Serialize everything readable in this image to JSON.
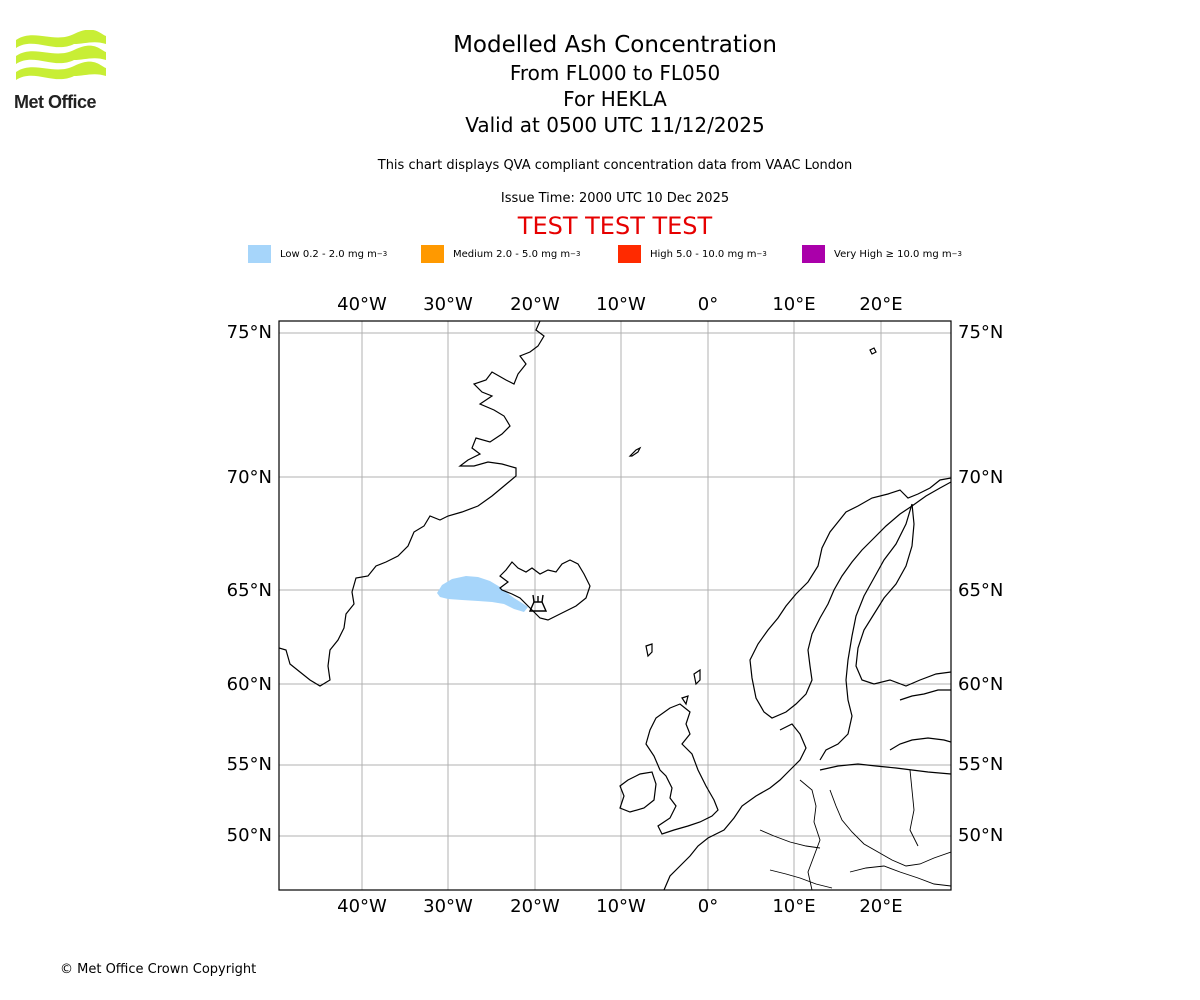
{
  "brand": {
    "name": "Met Office",
    "logo_icon": "met-office-waves-logo"
  },
  "header": {
    "title": "Modelled Ash Concentration",
    "levels": "From FL000 to FL050",
    "volcano_line": "For HEKLA",
    "valid": "Valid at 0500 UTC 11/12/2025",
    "subtitle": "This chart displays QVA compliant concentration data from VAAC London",
    "issue_time": "Issue Time: 2000 UTC 10 Dec 2025",
    "test_banner": "TEST TEST TEST"
  },
  "legend": [
    {
      "label": "Low 0.2 - 2.0 mg m",
      "unit_sup": "−3",
      "color": "#a6d5fa"
    },
    {
      "label": "Medium 2.0 - 5.0 mg m",
      "unit_sup": "−3",
      "color": "#ff9900"
    },
    {
      "label": "High 5.0 - 10.0 mg m",
      "unit_sup": "−3",
      "color": "#ff2a00"
    },
    {
      "label": "Very High  ≥  10.0 mg m",
      "unit_sup": "−3",
      "color": "#aa00aa"
    }
  ],
  "map": {
    "lon_labels": [
      "40°W",
      "30°W",
      "20°W",
      "10°W",
      "0°",
      "10°E",
      "20°E"
    ],
    "lat_labels": [
      "75°N",
      "70°N",
      "65°N",
      "60°N",
      "55°N",
      "50°N"
    ],
    "volcano": {
      "name": "HEKLA",
      "lat": 63.98,
      "lon": -19.7,
      "icon": "volcano-icon"
    },
    "ash_plume_color": "#a6d5fa"
  },
  "footer": {
    "copyright": "© Met Office Crown Copyright"
  }
}
